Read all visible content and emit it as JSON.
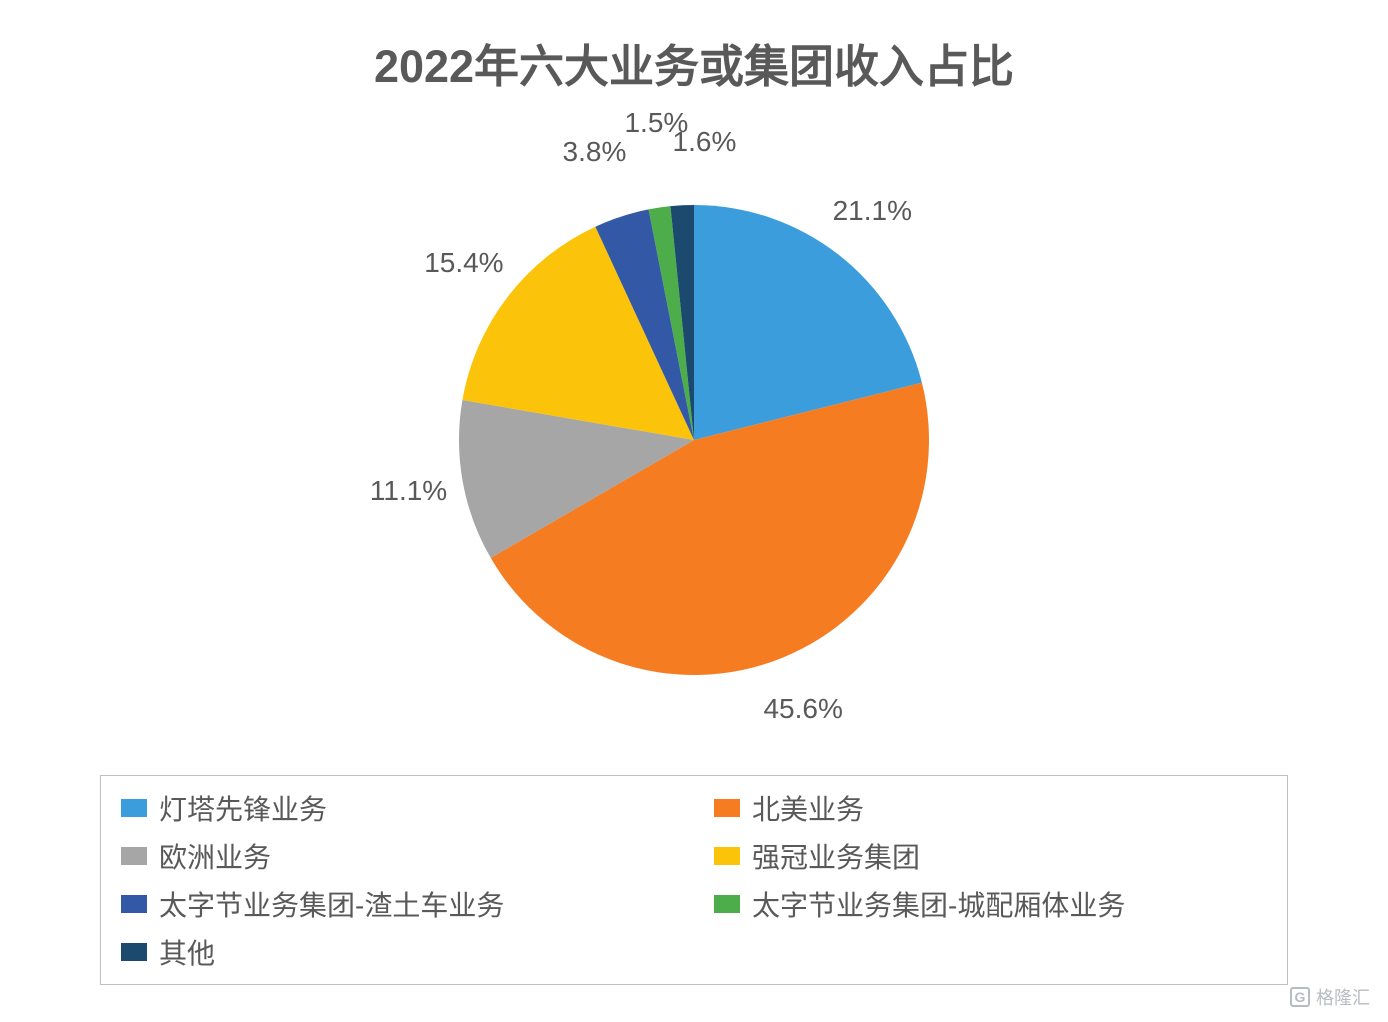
{
  "chart": {
    "type": "pie",
    "title": "2022年六大业务或集团收入占比",
    "title_color": "#595959",
    "title_fontsize": 45,
    "title_fontweight": 700,
    "background_color": "#ffffff",
    "pie_radius": 235,
    "start_angle_deg": 0,
    "label_fontsize": 28,
    "label_color": "#595959",
    "slices": [
      {
        "name": "灯塔先锋业务",
        "value": 21.1,
        "label": "21.1%",
        "color": "#3b9ddb"
      },
      {
        "name": "北美业务",
        "value": 45.6,
        "label": "45.6%",
        "color": "#f57c20"
      },
      {
        "name": "欧洲业务",
        "value": 11.1,
        "label": "11.1%",
        "color": "#a6a6a6"
      },
      {
        "name": "强冠业务集团",
        "value": 15.4,
        "label": "15.4%",
        "color": "#fcc30b"
      },
      {
        "name": "太字节业务集团-渣土车业务",
        "value": 3.8,
        "label": "3.8%",
        "color": "#3359a6"
      },
      {
        "name": "太字节业务集团-城配厢体业务",
        "value": 1.5,
        "label": "1.5%",
        "color": "#4cad4a"
      },
      {
        "name": "其他",
        "value": 1.6,
        "label": "1.6%",
        "color": "#1b4a6e"
      }
    ],
    "legend": {
      "border_color": "#bfbfbf",
      "fontsize": 28,
      "text_color": "#595959",
      "columns": 2,
      "swatch_width": 26,
      "swatch_height": 18,
      "items": [
        {
          "label": "灯塔先锋业务",
          "color": "#3b9ddb"
        },
        {
          "label": "北美业务",
          "color": "#f57c20"
        },
        {
          "label": "欧洲业务",
          "color": "#a6a6a6"
        },
        {
          "label": "强冠业务集团",
          "color": "#fcc30b"
        },
        {
          "label": "太字节业务集团-渣土车业务",
          "color": "#3359a6"
        },
        {
          "label": "太字节业务集团-城配厢体业务",
          "color": "#4cad4a"
        },
        {
          "label": "其他",
          "color": "#1b4a6e"
        }
      ]
    }
  },
  "watermark": {
    "text": "格隆汇",
    "icon_text": "G",
    "color": "#9aa1a9"
  }
}
